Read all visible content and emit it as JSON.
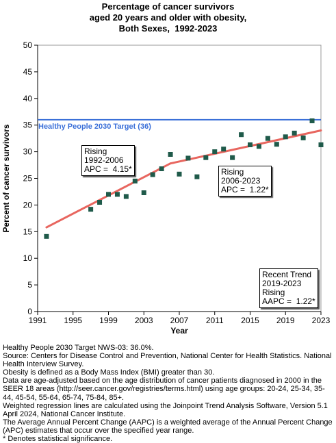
{
  "chart_data": {
    "type": "scatter",
    "title_lines": [
      "Percentage of cancer survivors",
      "aged 20 years and older with obesity,",
      "Both Sexes,  1992-2023"
    ],
    "xlabel": "Year",
    "ylabel": "Percent of cancer survivors",
    "xlim": [
      1991,
      2023
    ],
    "ylim": [
      0,
      50
    ],
    "x_ticks": [
      1991,
      1995,
      1999,
      2003,
      2007,
      2011,
      2015,
      2019,
      2023
    ],
    "y_ticks": [
      0,
      5,
      10,
      15,
      20,
      25,
      30,
      35,
      40,
      45,
      50
    ],
    "grid": false,
    "observed": {
      "color": "#1f5a4a",
      "points": [
        [
          1992,
          14.1
        ],
        [
          1997,
          19.2
        ],
        [
          1998,
          20.5
        ],
        [
          1999,
          22.0
        ],
        [
          2000,
          22.0
        ],
        [
          2001,
          21.6
        ],
        [
          2002,
          24.5
        ],
        [
          2003,
          22.3
        ],
        [
          2004,
          25.7
        ],
        [
          2005,
          26.8
        ],
        [
          2006,
          29.5
        ],
        [
          2007,
          25.8
        ],
        [
          2008,
          28.8
        ],
        [
          2009,
          25.3
        ],
        [
          2010,
          28.9
        ],
        [
          2011,
          30.0
        ],
        [
          2012,
          30.5
        ],
        [
          2013,
          28.9
        ],
        [
          2014,
          33.2
        ],
        [
          2015,
          31.3
        ],
        [
          2016,
          31.0
        ],
        [
          2017,
          32.5
        ],
        [
          2018,
          31.4
        ],
        [
          2019,
          32.8
        ],
        [
          2020,
          33.5
        ],
        [
          2021,
          32.6
        ],
        [
          2022,
          35.8
        ],
        [
          2023,
          31.3
        ]
      ]
    },
    "trend": {
      "color": "#e8665f",
      "segments": [
        {
          "from": [
            1992,
            15.8
          ],
          "to": [
            2006,
            27.8
          ]
        },
        {
          "from": [
            2006,
            27.8
          ],
          "to": [
            2023,
            34.0
          ]
        }
      ]
    },
    "target_line": {
      "value": 36,
      "label": "Healthy People 2030 Target (36)",
      "color": "#3a6fd8"
    },
    "annotations": [
      {
        "lines": [
          "Rising",
          "1992-2006",
          "APC =  4.15*"
        ]
      },
      {
        "lines": [
          "Rising",
          "2006-2023",
          "APC =  1.22*"
        ]
      },
      {
        "lines": [
          "Recent Trend",
          "2019-2023",
          "Rising",
          "AAPC =  1.22*"
        ]
      }
    ]
  },
  "footnotes": [
    "Healthy People 2030 Target NWS-03: 36.0%.",
    "Source: Centers for Disease Control and Prevention, National Center for Health Statistics. National Health Interview Survey.",
    "Obesity is defined as a Body Mass Index (BMI) greater than 30.",
    "Data are age-adjusted based on the age distribution of cancer patients diagnosed in 2000 in the SEER 18 areas (http://seer.cancer.gov/registries/terms.html) using age groups: 20-24, 25-34, 35-44, 45-54, 55-64, 65-74, 75-84, 85+.",
    "Weighted regression lines are calculated using the Joinpoint Trend Analysis Software, Version 5.1 April 2024, National Cancer Institute.",
    "The Average Annual Percent Change (AAPC) is a weighted average of the Annual Percent Change (APC) estimates that occur over the specified year range.",
    "* Denotes statistical significance."
  ]
}
